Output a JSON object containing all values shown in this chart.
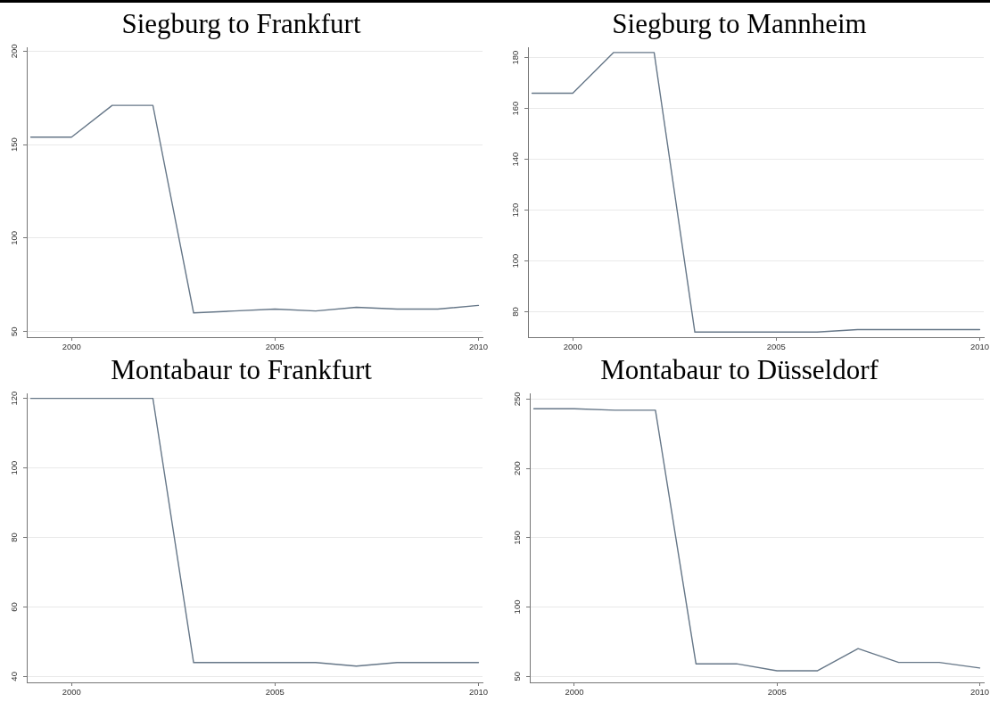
{
  "chart_data": [
    {
      "type": "line",
      "title": "Siegburg to Frankfurt",
      "x": [
        1999,
        2000,
        2001,
        2002,
        2003,
        2004,
        2005,
        2006,
        2007,
        2008,
        2009,
        2010
      ],
      "values": [
        154,
        154,
        171,
        171,
        60,
        61,
        62,
        61,
        63,
        62,
        62,
        64
      ],
      "color": "#667788",
      "xlim": [
        1998.9,
        2010.1
      ],
      "xticks": [
        2000,
        2005,
        2010
      ],
      "ylim": [
        47,
        202
      ],
      "yticks": [
        50,
        100,
        150,
        200
      ],
      "grid": "y"
    },
    {
      "type": "line",
      "title": "Siegburg to Mannheim",
      "x": [
        1999,
        2000,
        2001,
        2002,
        2003,
        2004,
        2005,
        2006,
        2007,
        2008,
        2009,
        2010
      ],
      "values": [
        166,
        166,
        182,
        182,
        72,
        72,
        72,
        72,
        73,
        73,
        73,
        73
      ],
      "color": "#667788",
      "xlim": [
        1998.9,
        2010.1
      ],
      "xticks": [
        2000,
        2005,
        2010
      ],
      "ylim": [
        70,
        184
      ],
      "yticks": [
        80,
        100,
        120,
        140,
        160,
        180
      ],
      "grid": "y"
    },
    {
      "type": "line",
      "title": "Montabaur to Frankfurt",
      "x": [
        1999,
        2000,
        2001,
        2002,
        2003,
        2004,
        2005,
        2006,
        2007,
        2008,
        2009,
        2010
      ],
      "values": [
        120,
        120,
        120,
        120,
        44,
        44,
        44,
        44,
        43,
        44,
        44,
        44
      ],
      "color": "#667788",
      "xlim": [
        1998.9,
        2010.1
      ],
      "xticks": [
        2000,
        2005,
        2010
      ],
      "ylim": [
        38.3,
        121.4
      ],
      "yticks": [
        40,
        60,
        80,
        100,
        120
      ],
      "grid": "y"
    },
    {
      "type": "line",
      "title": "Montabaur to Düsseldorf",
      "x": [
        1999,
        2000,
        2001,
        2002,
        2003,
        2004,
        2005,
        2006,
        2007,
        2008,
        2009,
        2010
      ],
      "values": [
        243,
        243,
        242,
        242,
        59,
        59,
        54,
        54,
        70,
        60,
        60,
        56
      ],
      "color": "#667788",
      "xlim": [
        1998.9,
        2010.1
      ],
      "xticks": [
        2000,
        2005,
        2010
      ],
      "ylim": [
        45.6,
        254
      ],
      "yticks": [
        50,
        100,
        150,
        200,
        250
      ],
      "grid": "y"
    }
  ]
}
